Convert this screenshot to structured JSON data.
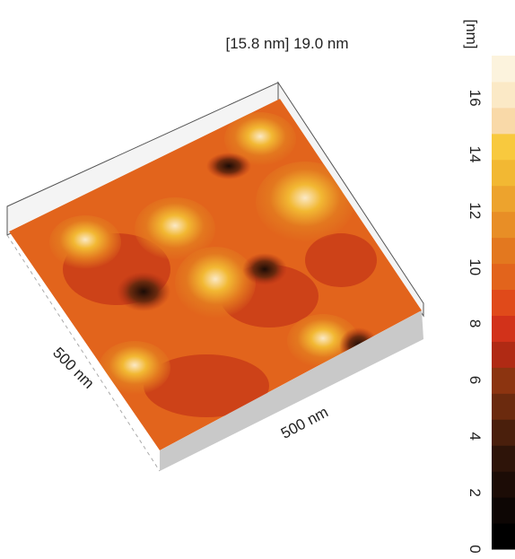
{
  "title": "[15.8 nm] 19.0 nm",
  "axes": {
    "left_label": "500 nm",
    "front_label": "500 nm"
  },
  "colorbar": {
    "unit": "[nm]",
    "ticks": [
      0,
      2,
      4,
      6,
      8,
      10,
      12,
      14,
      16
    ],
    "range": [
      0,
      17.5
    ],
    "colors": [
      "#000000",
      "#0d0604",
      "#1c0c06",
      "#2e1409",
      "#4a1f0c",
      "#6b2a0e",
      "#8c3410",
      "#b02a14",
      "#d2321a",
      "#e04a1a",
      "#e2641c",
      "#e3781f",
      "#e88e26",
      "#eda32d",
      "#f2b833",
      "#f8c93e",
      "#f9d9a8",
      "#fbe9c6",
      "#fcf3dd"
    ]
  }
}
